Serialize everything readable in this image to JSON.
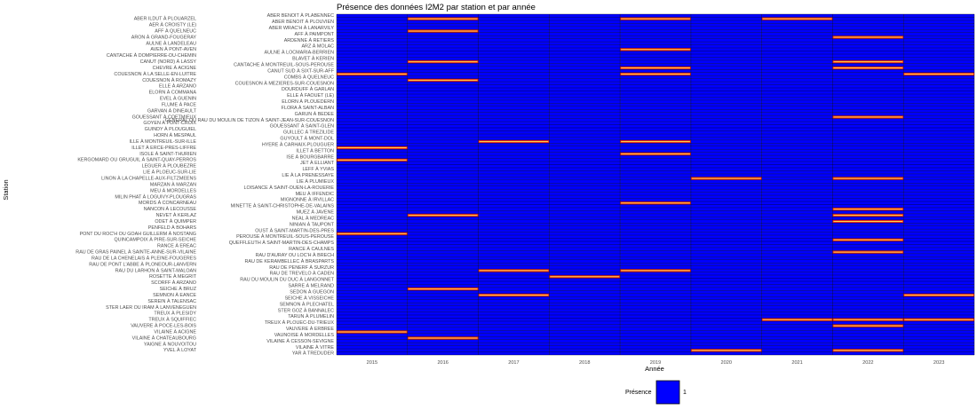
{
  "chart_data": {
    "type": "heatmap",
    "title": "Présence des données I2M2 par station et par année",
    "xlabel": "Année",
    "ylabel": "Station",
    "x": [
      "2015",
      "2016",
      "2017",
      "2018",
      "2019",
      "2020",
      "2021",
      "2022",
      "2023"
    ],
    "legend": {
      "title": "Présence",
      "labels": [
        "1"
      ],
      "color": "#0000ff",
      "position": "bottom"
    },
    "stations": [
      "YAR à TREDUDER",
      "YVEL à LOYAT",
      "VILAINE à VITRE",
      "YAIGNE à NOUVOITOU",
      "VILAINE à CESSON-SEVIGNE",
      "VILAINE à CHATEAUBOURG",
      "VAUNOISE à MORDELLES",
      "VILAINE à ACIGNE",
      "VAUVERE à ERBREE",
      "VAUVERE à POCE-LES-BOIS",
      "TREUX à PLOUEC-DU-TRIEUX",
      "TREUX à SQUIFFIEC",
      "TARUN à PLUMELIN",
      "TREUX à PLESIDY",
      "STER GOZ à BANNALEC",
      "STER LAER ou IRAM à LANVENEGUEN",
      "SEMNON à PLECHATEL",
      "SEREIN à TALENSAC",
      "SEICHE à VISSEICHE",
      "SEMNON à EANCE",
      "SEDON à GUEGON",
      "SEICHE à BRUZ",
      "SARRE à MELRAND",
      "SCORFF à ARZANO",
      "RAU DU MOULIN DU DUC à LANGONNET",
      "ROSETTE à MEGRIT",
      "RAU DE TREVELO à CADEN",
      "RAU DU LARHON à SAINT-MALOAN",
      "RAU DE PENERF à SURZUR",
      "RAU DE PONT L'ABBE à PLONEOUR-LANVERN",
      "RAU DE KERAMBELLEC à BRASPARTS",
      "RAU DE LA CHENELAIS à PLEINE-FOUGERES",
      "RAU D'AURAY ou LOC'H à BRECH",
      "RAU DE GRAS PAINEL à SAINTE-ANNE-SUR-VILAINE",
      "RANCE à CAULNES",
      "RANCE à EREAC",
      "QUEFFLEUTH à SAINT-MARTIN-DES-CHAMPS",
      "QUINCAMPOIX à PIRE-SUR-SEICHE",
      "PEROUSE à MONTREUIL-SOUS-PEROUSE",
      "PONT DU ROC'H ou GOAH GUILLERM à NOSTANG",
      "OUST à SAINT-MARTIN-DES-PRES",
      "PENFELD à BOHARS",
      "NINIAN à TAUPONT",
      "ODET à QUIMPER",
      "NEAL à MEDREAC",
      "NEVET à KERLAZ",
      "MUEZ à JAVENE",
      "NANCON à LECOUSSE",
      "MINETTE à SAINT-CHRISTOPHE-DE-VALAINS",
      "MORDS à CONCARNEAU",
      "MIGNONNE à IRVILLAC",
      "MILIN PHAT à LOGUIVY-PLOUGRAS",
      "MEU à IFFENDIC",
      "MEU à MORDELLES",
      "LOISANCE à SAINT-OUEN-LA-ROUERIE",
      "MARZAN à MARZAN",
      "LIE à PLUMIEUX",
      "LINON à LA CHAPELLE-AUX-FILTZMEENS",
      "LIE à LA PRENESSAYE",
      "LIE à PLOEUC-SUR-LIE",
      "LEFF à YVIAS",
      "LEGUER à PLOUBEZRE",
      "JET à ELLIANT",
      "KERGOMARD OU GRUGUIL à SAINT-QUAY-PERROS",
      "ISE à BOURGBARRE",
      "ISOLE à SAINT-THURIEN",
      "ILLET à BETTON",
      "ILLET à ERCE-PRES-LIFFRE",
      "HYERE à CARHAIX-PLOUGUER",
      "ILLE à MONTREUIL-SUR-ILLE",
      "GUYOULT à MONT-DOL",
      "HORN à MESPAUL",
      "GUILLEC à TREZILIDE",
      "GUINDY à PLOUGUIEL",
      "GOUESSANT à SAINT-GLEN",
      "GOYEN à PONT-CROIX",
      "GENERAL OU RAU DU MOULIN DE TIZON à SAINT-JEAN-SUR-COUESNON",
      "GOUESSANT à COETMIEUX",
      "GARUN à BEDEE",
      "GARVAN à DINEAULT",
      "FLORA à SAINT-ALBAN",
      "FLUME à PACE",
      "ELORN à PLOUEDERN",
      "EVEL à GUENIN",
      "ELLE à FAOUET (LE)",
      "ELORN à COMMANA",
      "DOURDUFF à GARLAN",
      "ELLE à ARZANO",
      "COUESNON à MEZIERES-SUR-COUESNON",
      "COUESNON à ROMAZY",
      "COMBS à QUELNEUC",
      "COUESNON à LA SELLE-EN-LUITRE",
      "CANUT SUD à SIXT-SUR-AFF",
      "CHEVRE à ACIGNE",
      "CANTACHE à MONTREUIL-SOUS-PEROUSE",
      "CANUT (NORD) à LASSY",
      "BLAVET à KERIEN",
      "CANTACHE à DOMPIERRE-DU-CHEMIN",
      "AULNE à LOCMARIA-BERRIEN",
      "AVEN à PONT-AVEN",
      "ARZ à MOLAC",
      "AULNE à LANDELEAU",
      "ARDENNE à RETIERS",
      "ARON à GRAND-FOUGERAY",
      "AFF à PAIMPONT",
      "AFF à QUELNEUC",
      "ABER WRAC'H à LANARVILY",
      "AER à CROISTY (LE)",
      "ABER BENOIT à PLOUVIEN",
      "ABER ILDUT à PLOUARZEL",
      "ABER BENOIT à PLABENNEC"
    ],
    "cells": [
      {
        "station": "YVEL à LOYAT",
        "year": "2020",
        "value": 1
      },
      {
        "station": "YVEL à LOYAT",
        "year": "2022",
        "value": 1
      },
      {
        "station": "VILAINE à CHATEAUBOURG",
        "year": "2016",
        "value": 1
      },
      {
        "station": "VILAINE à ACIGNE",
        "year": "2015",
        "value": 1
      },
      {
        "station": "VAUVERE à POCE-LES-BOIS",
        "year": "2022",
        "value": 1
      },
      {
        "station": "TREUX à SQUIFFIEC",
        "year": "2021",
        "value": 1
      },
      {
        "station": "TREUX à SQUIFFIEC",
        "year": "2022",
        "value": 1
      },
      {
        "station": "TREUX à SQUIFFIEC",
        "year": "2023",
        "value": 1
      },
      {
        "station": "SEMNON à EANCE",
        "year": "2017",
        "value": 1
      },
      {
        "station": "SEMNON à EANCE",
        "year": "2023",
        "value": 1
      },
      {
        "station": "SEICHE à BRUZ",
        "year": "2016",
        "value": 1
      },
      {
        "station": "ROSETTE à MEGRIT",
        "year": "2018",
        "value": 1
      },
      {
        "station": "RAU DU LARHON à SAINT-MALOAN",
        "year": "2017",
        "value": 1
      },
      {
        "station": "RAU DU LARHON à SAINT-MALOAN",
        "year": "2019",
        "value": 1
      },
      {
        "station": "RAU DE GRAS PAINEL à SAINTE-ANNE-SUR-VILAINE",
        "year": "2022",
        "value": 1
      },
      {
        "station": "QUINCAMPOIX à PIRE-SUR-SEICHE",
        "year": "2022",
        "value": 1
      },
      {
        "station": "PONT DU ROC'H ou GOAH GUILLERM à NOSTANG",
        "year": "2015",
        "value": 1
      },
      {
        "station": "ODET à QUIMPER",
        "year": "2022",
        "value": 1
      },
      {
        "station": "NEVET à KERLAZ",
        "year": "2016",
        "value": 1
      },
      {
        "station": "NEVET à KERLAZ",
        "year": "2022",
        "value": 1
      },
      {
        "station": "NANCON à LECOUSSE",
        "year": "2022",
        "value": 1
      },
      {
        "station": "MORDS à CONCARNEAU",
        "year": "2019",
        "value": 1
      },
      {
        "station": "LINON à LA CHAPELLE-AUX-FILTZMEENS",
        "year": "2020",
        "value": 1
      },
      {
        "station": "LINON à LA CHAPELLE-AUX-FILTZMEENS",
        "year": "2022",
        "value": 1
      },
      {
        "station": "KERGOMARD OU GRUGUIL à SAINT-QUAY-PERROS",
        "year": "2015",
        "value": 1
      },
      {
        "station": "ISOLE à SAINT-THURIEN",
        "year": "2019",
        "value": 1
      },
      {
        "station": "ILLET à ERCE-PRES-LIFFRE",
        "year": "2015",
        "value": 1
      },
      {
        "station": "ILLE à MONTREUIL-SUR-ILLE",
        "year": "2017",
        "value": 1
      },
      {
        "station": "ILLE à MONTREUIL-SUR-ILLE",
        "year": "2019",
        "value": 1
      },
      {
        "station": "GOUESSANT à COETMIEUX",
        "year": "2022",
        "value": 1
      },
      {
        "station": "COUESNON à ROMAZY",
        "year": "2016",
        "value": 1
      },
      {
        "station": "COUESNON à LA SELLE-EN-LUITRE",
        "year": "2015",
        "value": 1
      },
      {
        "station": "COUESNON à LA SELLE-EN-LUITRE",
        "year": "2019",
        "value": 1
      },
      {
        "station": "COUESNON à LA SELLE-EN-LUITRE",
        "year": "2023",
        "value": 1
      },
      {
        "station": "CHEVRE à ACIGNE",
        "year": "2019",
        "value": 1
      },
      {
        "station": "CHEVRE à ACIGNE",
        "year": "2022",
        "value": 1
      },
      {
        "station": "CANUT (NORD) à LASSY",
        "year": "2016",
        "value": 1
      },
      {
        "station": "CANUT (NORD) à LASSY",
        "year": "2022",
        "value": 1
      },
      {
        "station": "AVEN à PONT-AVEN",
        "year": "2019",
        "value": 1
      },
      {
        "station": "ARON à GRAND-FOUGERAY",
        "year": "2022",
        "value": 1
      },
      {
        "station": "AFF à QUELNEUC",
        "year": "2016",
        "value": 1
      },
      {
        "station": "ABER ILDUT à PLOUARZEL",
        "year": "2016",
        "value": 1
      },
      {
        "station": "ABER ILDUT à PLOUARZEL",
        "year": "2019",
        "value": 1
      },
      {
        "station": "ABER ILDUT à PLOUARZEL",
        "year": "2021",
        "value": 1
      }
    ],
    "fill_color": "#0000ff",
    "grid": false
  }
}
